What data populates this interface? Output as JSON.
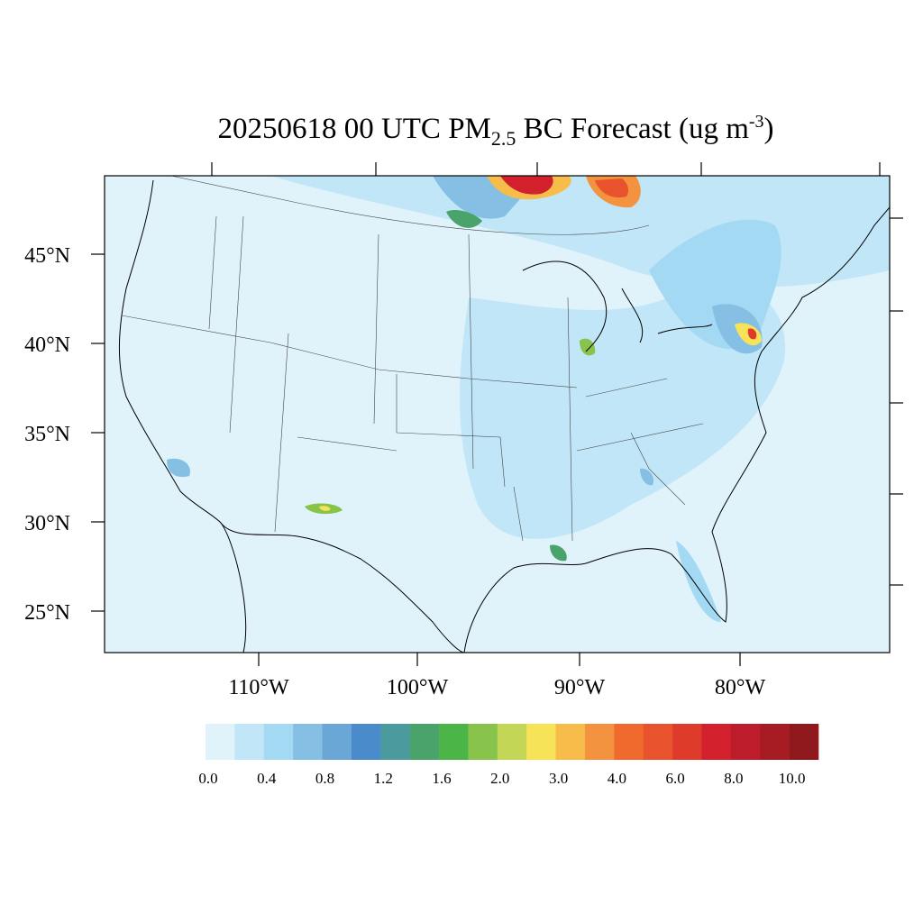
{
  "title": {
    "prefix": "20250618 00 UTC PM",
    "subscript": "2.5",
    "middle": " BC Forecast (ug m",
    "superscript": "-3",
    "suffix": ")"
  },
  "lat_labels": [
    "45°N",
    "40°N",
    "35°N",
    "30°N",
    "25°N"
  ],
  "lon_labels": [
    "110°W",
    "100°W",
    "90°W",
    "80°W"
  ],
  "colorbar": {
    "colors": [
      "#e0f3fb",
      "#c0e6f7",
      "#a3d9f3",
      "#85bfe3",
      "#6aa6d6",
      "#4a8bcb",
      "#4b9a9e",
      "#4aa36b",
      "#4bb548",
      "#88c44b",
      "#c3d656",
      "#f6e358",
      "#f7bc4a",
      "#f4933f",
      "#f06a2d",
      "#e8532d",
      "#df3b2a",
      "#d3202d",
      "#bd1d2b",
      "#a71b23",
      "#8f181d"
    ],
    "labels": [
      "0.0",
      "0.4",
      "0.8",
      "1.2",
      "1.6",
      "2.0",
      "3.0",
      "4.0",
      "6.0",
      "8.0",
      "10.0"
    ]
  }
}
